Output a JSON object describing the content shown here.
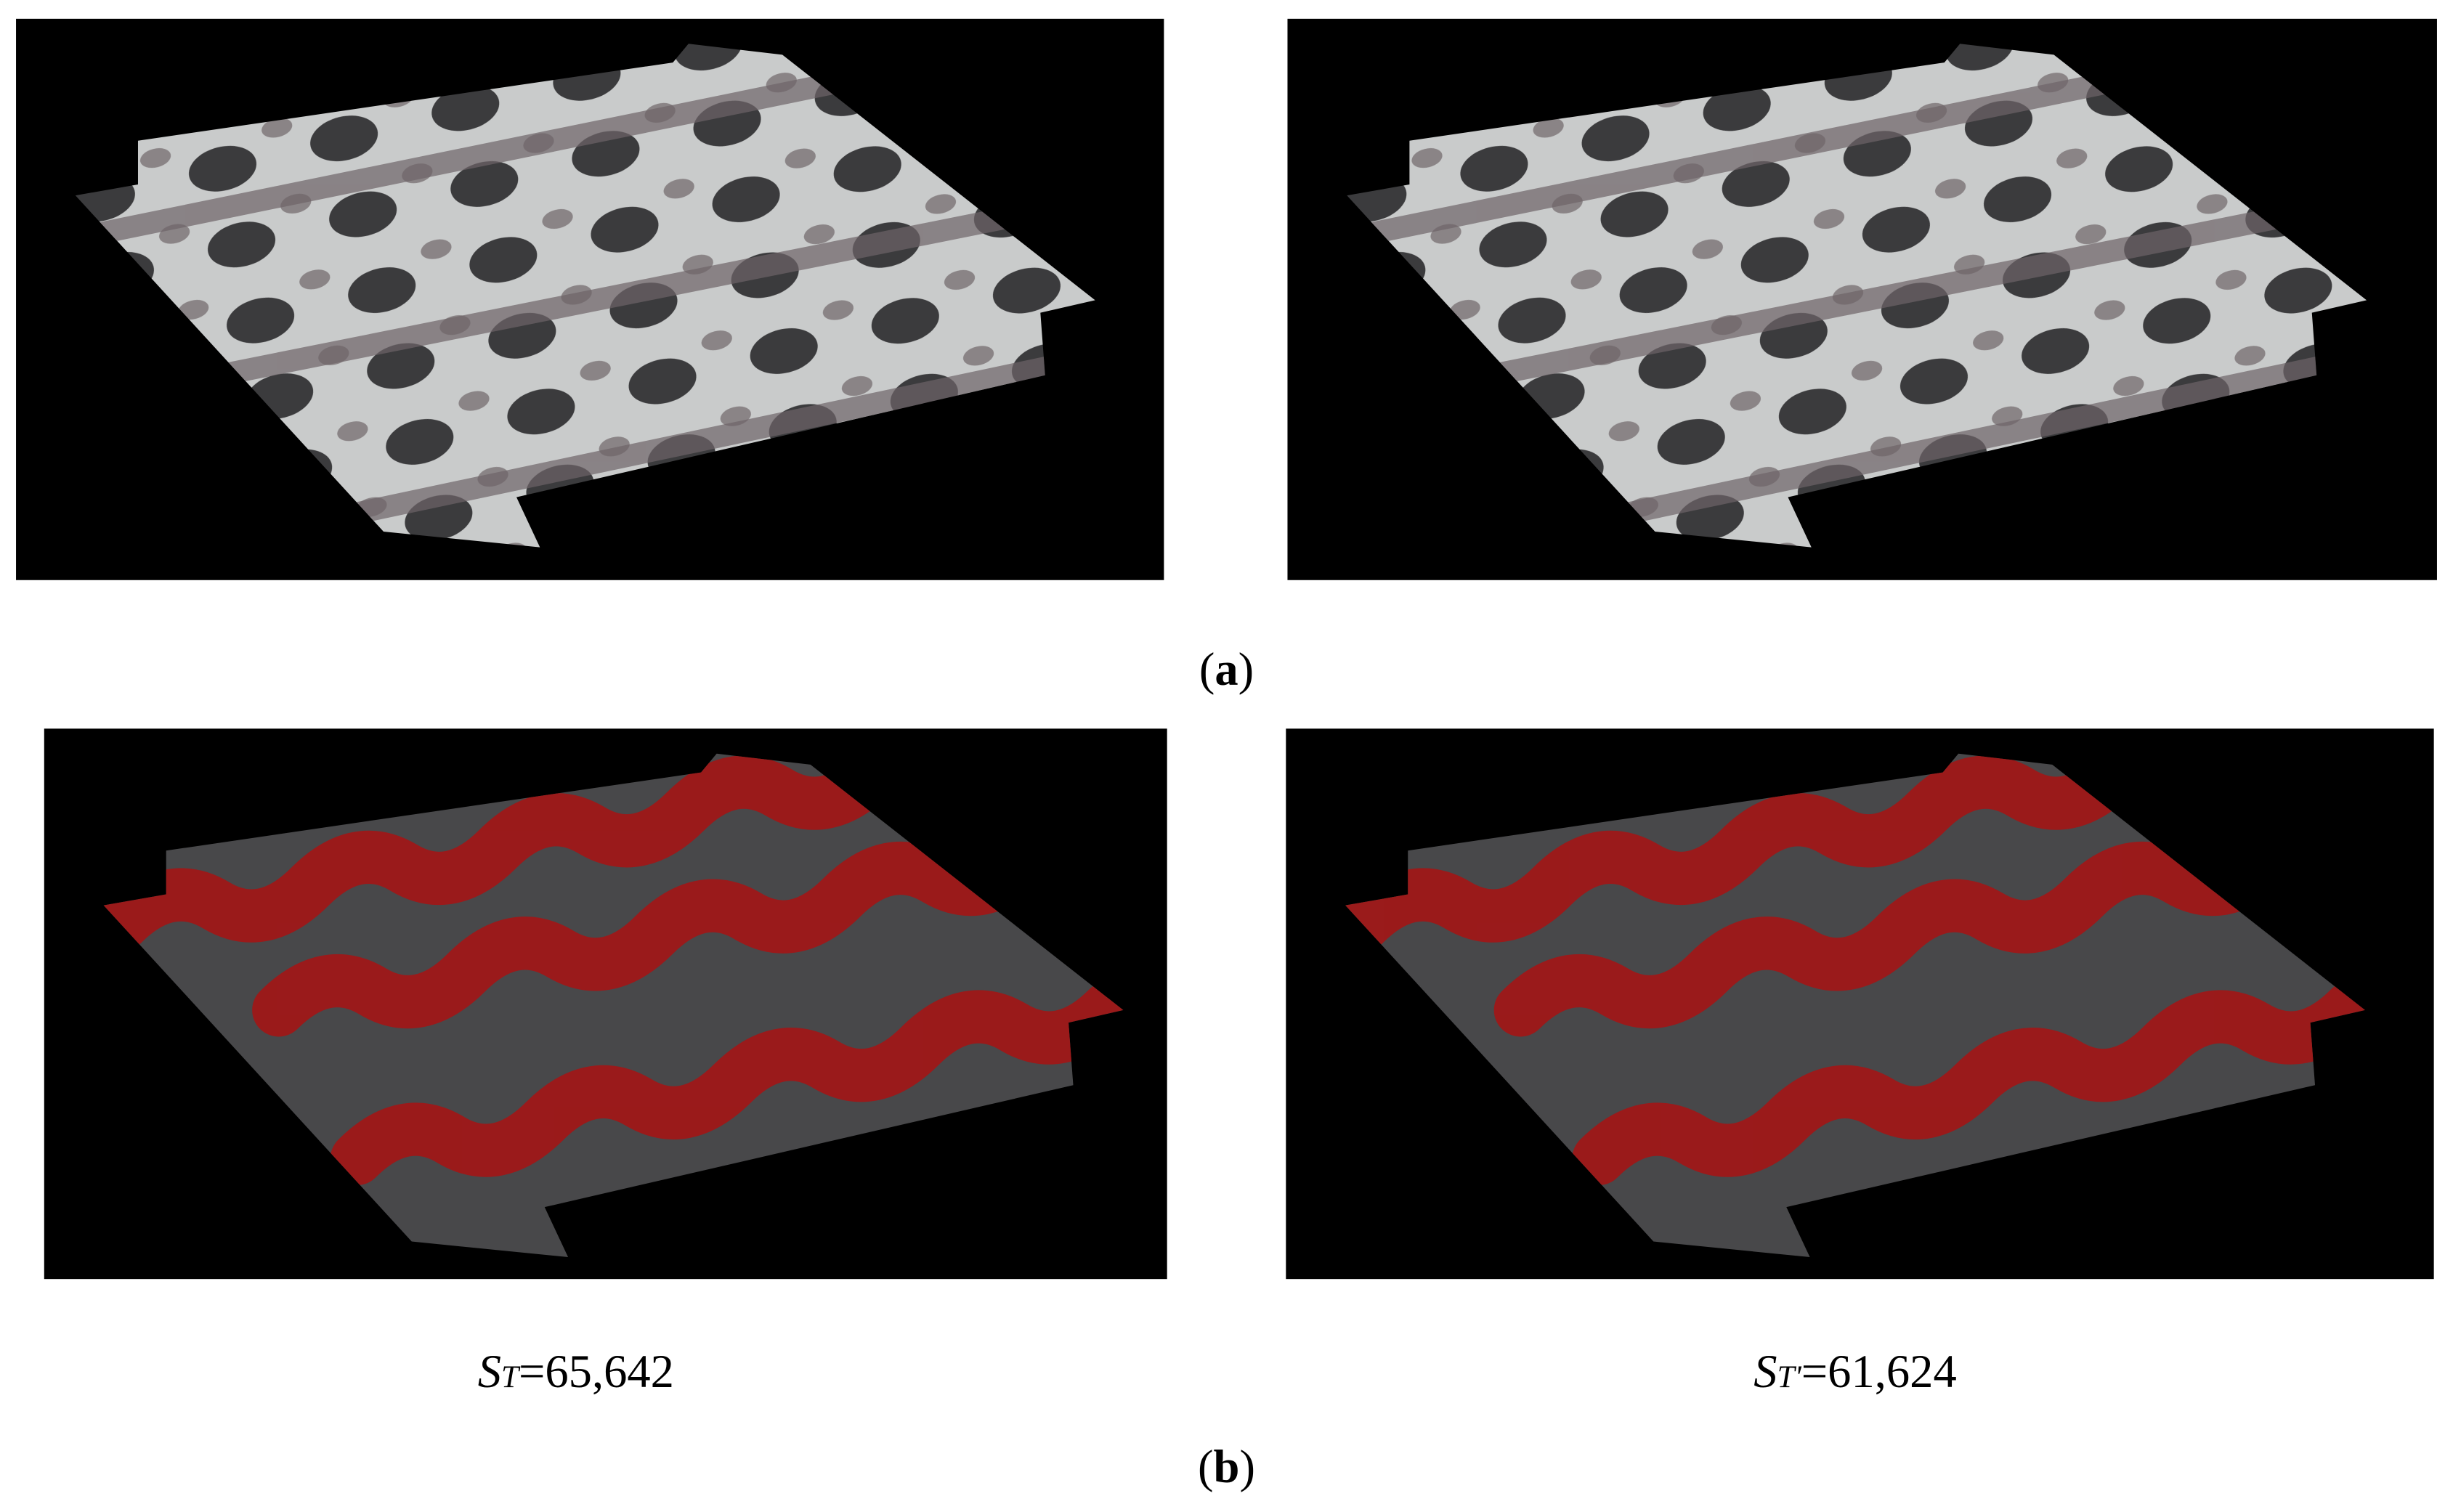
{
  "panels": [
    {
      "label_parts": [
        "(",
        "a",
        ")"
      ]
    },
    {
      "label_parts": [
        "(",
        "b",
        ")"
      ],
      "captions": [
        {
          "symbol": "S",
          "subscript": "T",
          "rest": "=65,642"
        },
        {
          "symbol": "S",
          "subscript": "T'",
          "rest": "=61,624"
        }
      ]
    }
  ]
}
